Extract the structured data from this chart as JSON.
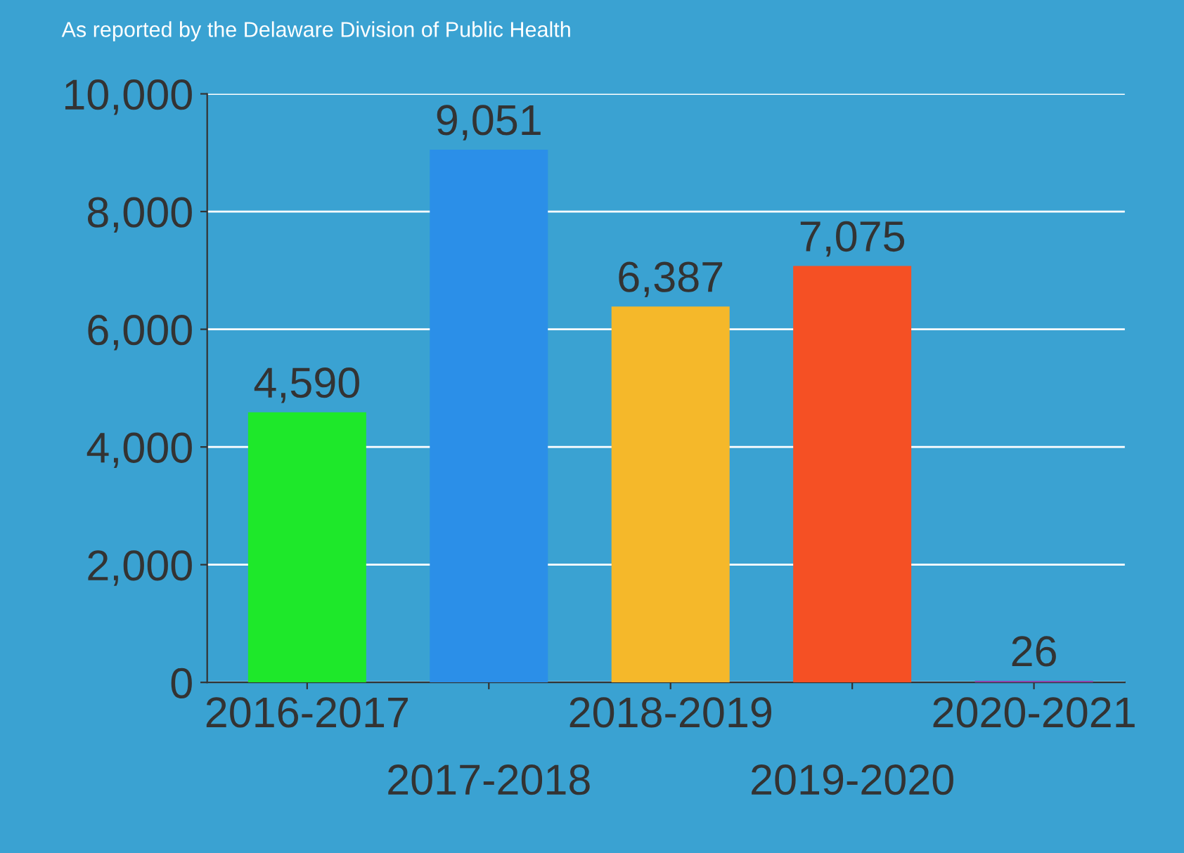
{
  "chart_data": {
    "type": "bar",
    "annotations": [
      "As reported by the Delaware Division of Public Health"
    ],
    "categories": [
      "2016-2017",
      "2017-2018",
      "2018-2019",
      "2019-2020",
      "2020-2021"
    ],
    "values": [
      4590,
      9051,
      6387,
      7075,
      26
    ],
    "colors": [
      "#1ee82a",
      "#2b8fe8",
      "#f5b82a",
      "#f55024",
      "#8e44ad"
    ],
    "ylim": [
      0,
      10000
    ],
    "yticks": [
      {
        "value": 0,
        "label": "0"
      },
      {
        "value": 2000,
        "label": "2,000"
      },
      {
        "value": 4000,
        "label": "4,000"
      },
      {
        "value": 6000,
        "label": "6,000"
      },
      {
        "value": 8000,
        "label": "8,000"
      },
      {
        "value": 10000,
        "label": "10,000"
      }
    ],
    "value_labels": [
      "4,590",
      "9,051",
      "6,387",
      "7,075",
      "26"
    ],
    "grid": "y"
  }
}
